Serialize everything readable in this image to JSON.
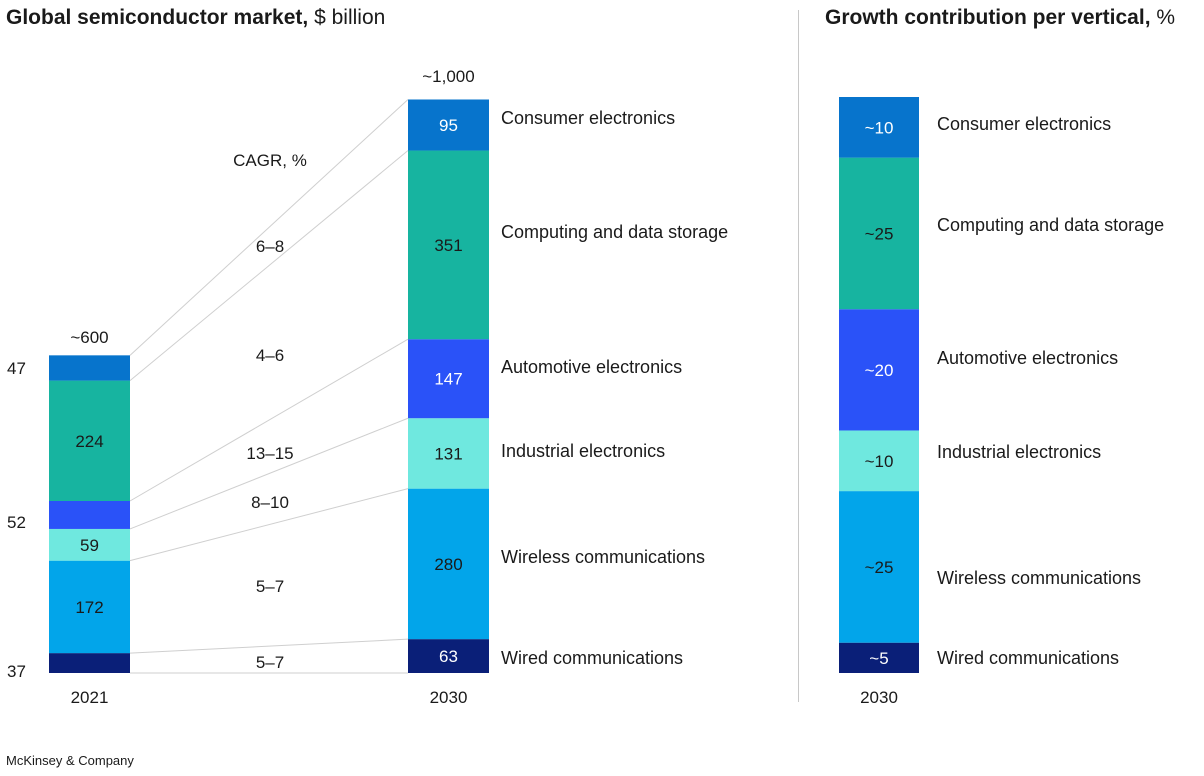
{
  "title": {
    "left_bold": "Global semiconductor market,",
    "left_unit": " $ billion",
    "right_bold": "Growth contribution per vertical,",
    "right_unit": " %"
  },
  "footer": "McKinsey & Company",
  "chart_data": [
    {
      "type": "bar",
      "stacked": true,
      "title": "Global semiconductor market, $ billion",
      "categories": [
        "2021",
        "2030"
      ],
      "totals": [
        "~600",
        "~1,000"
      ],
      "cagr_header": "CAGR, %",
      "series": [
        {
          "name": "Wired communications",
          "values": [
            37,
            63
          ],
          "cagr": "5–7",
          "color": "#0a1f78",
          "text_color": "#ffffff"
        },
        {
          "name": "Wireless communications",
          "values": [
            172,
            280
          ],
          "cagr": "5–7",
          "color": "#02a5ea",
          "text_color": "#1a1a1a"
        },
        {
          "name": "Industrial electronics",
          "values": [
            59,
            131
          ],
          "cagr": "8–10",
          "color": "#6fe8df",
          "text_color": "#1a1a1a"
        },
        {
          "name": "Automotive electronics",
          "values": [
            52,
            147
          ],
          "cagr": "13–15",
          "color": "#2a52f8",
          "text_color": "#ffffff"
        },
        {
          "name": "Computing and data storage",
          "values": [
            224,
            351
          ],
          "cagr": "4–6",
          "color": "#17b4a0",
          "text_color": "#1a1a1a"
        },
        {
          "name": "Consumer electronics",
          "values": [
            47,
            95
          ],
          "cagr": "6–8",
          "color": "#0774cc",
          "text_color": "#ffffff"
        }
      ],
      "labels_2021": [
        "37",
        "172",
        "59",
        "52",
        "224",
        "47"
      ],
      "labels_2030": [
        "63",
        "280",
        "131",
        "147",
        "351",
        "95"
      ]
    },
    {
      "type": "bar",
      "stacked": true,
      "title": "Growth contribution per vertical, %",
      "categories": [
        "2030"
      ],
      "series": [
        {
          "name": "Wired communications",
          "label": "~5",
          "value": 5,
          "color": "#0a1f78",
          "text_color": "#ffffff"
        },
        {
          "name": "Wireless communications",
          "label": "~25",
          "value": 25,
          "color": "#02a5ea",
          "text_color": "#1a1a1a"
        },
        {
          "name": "Industrial electronics",
          "label": "~10",
          "value": 10,
          "color": "#6fe8df",
          "text_color": "#1a1a1a"
        },
        {
          "name": "Automotive electronics",
          "label": "~20",
          "value": 20,
          "color": "#2a52f8",
          "text_color": "#ffffff"
        },
        {
          "name": "Computing and data storage",
          "label": "~25",
          "value": 25,
          "color": "#17b4a0",
          "text_color": "#1a1a1a"
        },
        {
          "name": "Consumer electronics",
          "label": "~10",
          "value": 10,
          "color": "#0774cc",
          "text_color": "#ffffff"
        }
      ]
    }
  ]
}
